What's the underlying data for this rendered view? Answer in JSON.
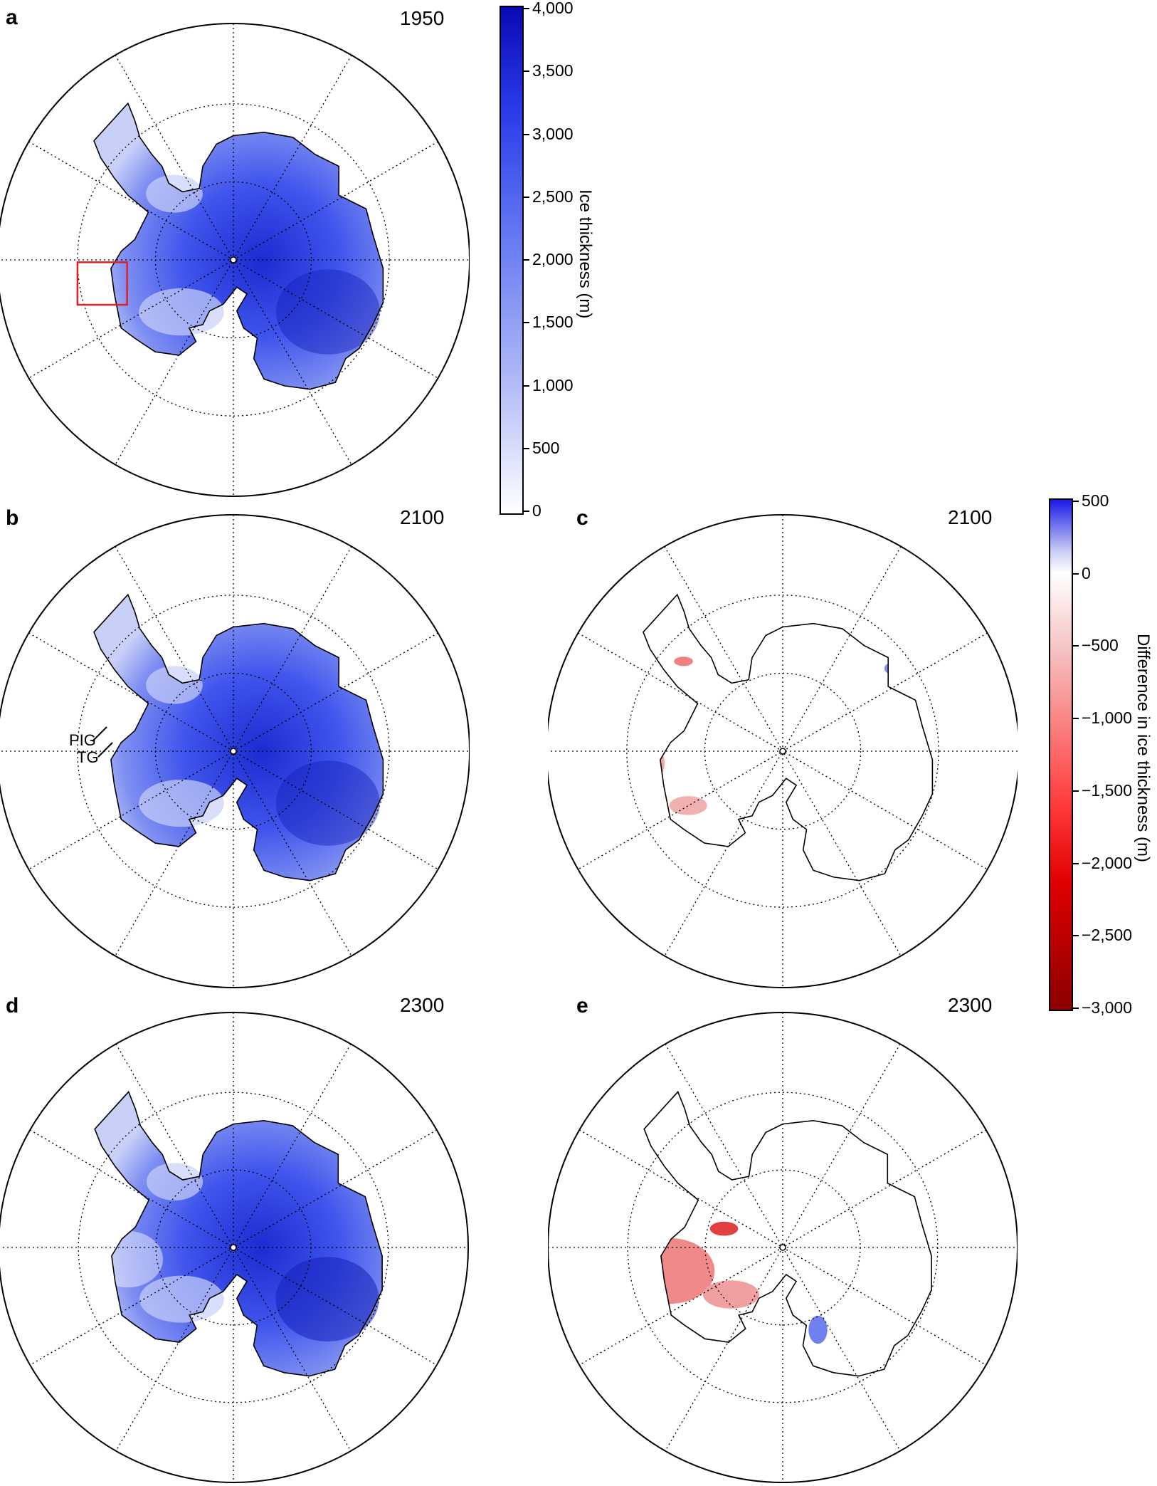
{
  "panels": [
    {
      "id": "a",
      "label": "a",
      "year": "1950",
      "kind": "thickness"
    },
    {
      "id": "b",
      "label": "b",
      "year": "2100",
      "kind": "thickness"
    },
    {
      "id": "c",
      "label": "c",
      "year": "2100",
      "kind": "difference"
    },
    {
      "id": "d",
      "label": "d",
      "year": "2300",
      "kind": "thickness"
    },
    {
      "id": "e",
      "label": "e",
      "year": "2300",
      "kind": "difference"
    }
  ],
  "annotations": {
    "pig": "PIG",
    "tg": "TG"
  },
  "colorbar_thickness": {
    "title": "Ice thickness (m)",
    "ticks": [
      "4,000",
      "3,500",
      "3,000",
      "2,500",
      "2,000",
      "1,500",
      "1,000",
      "500",
      "0"
    ],
    "min": 0,
    "max": 4000,
    "colors": [
      "#ffffff",
      "#0a0ab4"
    ]
  },
  "colorbar_difference": {
    "title": "Difference in ice thickness (m)",
    "ticks": [
      "500",
      "0",
      "−500",
      "−1,000",
      "−1,500",
      "−2,000",
      "−2,500",
      "−3,000"
    ],
    "min": -3000,
    "max": 500,
    "colors": [
      "#8b0000",
      "#ff1a1a",
      "#ffffff",
      "#1a1ae6"
    ]
  },
  "colors": {
    "ice": "#5a6ef0",
    "ice_dark": "#1c2bd0",
    "loss": "#e02020",
    "gain": "#3344dd",
    "box": "#e02020"
  }
}
